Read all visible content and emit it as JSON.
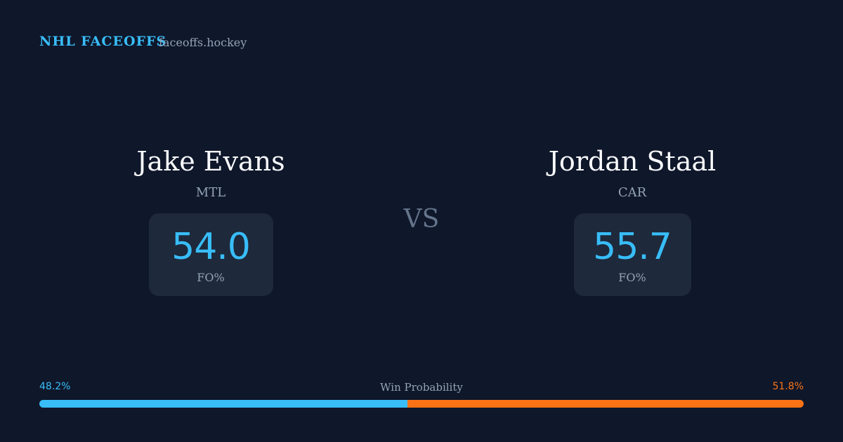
{
  "header": {
    "brand": "NHL FACEOFFS",
    "site": "faceoffs.hockey"
  },
  "players": [
    {
      "name": "Jake Evans",
      "team": "MTL",
      "fo_pct": "54.0",
      "fo_label": "FO%"
    },
    {
      "name": "Jordan Staal",
      "team": "CAR",
      "fo_pct": "55.7",
      "fo_label": "FO%"
    }
  ],
  "vs": "VS",
  "win_probability": {
    "label": "Win Probability",
    "values": [
      48.2,
      51.8
    ],
    "value_labels": [
      "48.2%",
      "51.8%"
    ]
  }
}
